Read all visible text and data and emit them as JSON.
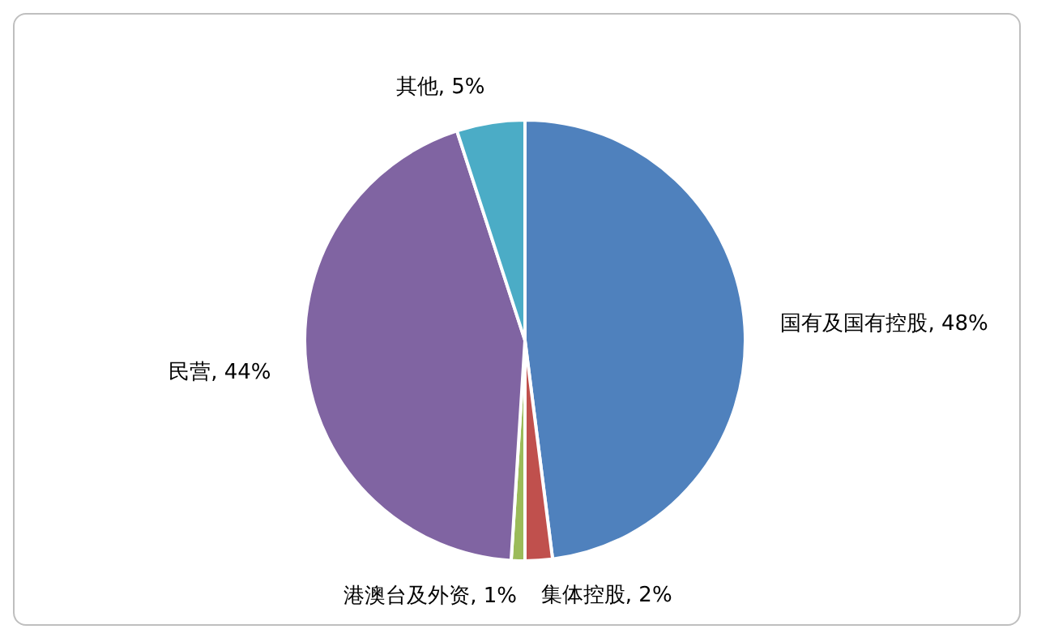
{
  "chart_data": {
    "type": "pie",
    "categories": [
      "国有及国有控股",
      "集体控股",
      "港澳台及外资",
      "民营",
      "其他"
    ],
    "values": [
      48,
      2,
      1,
      44,
      5
    ],
    "value_labels": [
      "48%",
      "2%",
      "1%",
      "44%",
      "5%"
    ],
    "colors": [
      "#4f81bd",
      "#c0504d",
      "#9bbb59",
      "#8064a2",
      "#4bacc6"
    ],
    "data_labels": true,
    "legend": false
  }
}
